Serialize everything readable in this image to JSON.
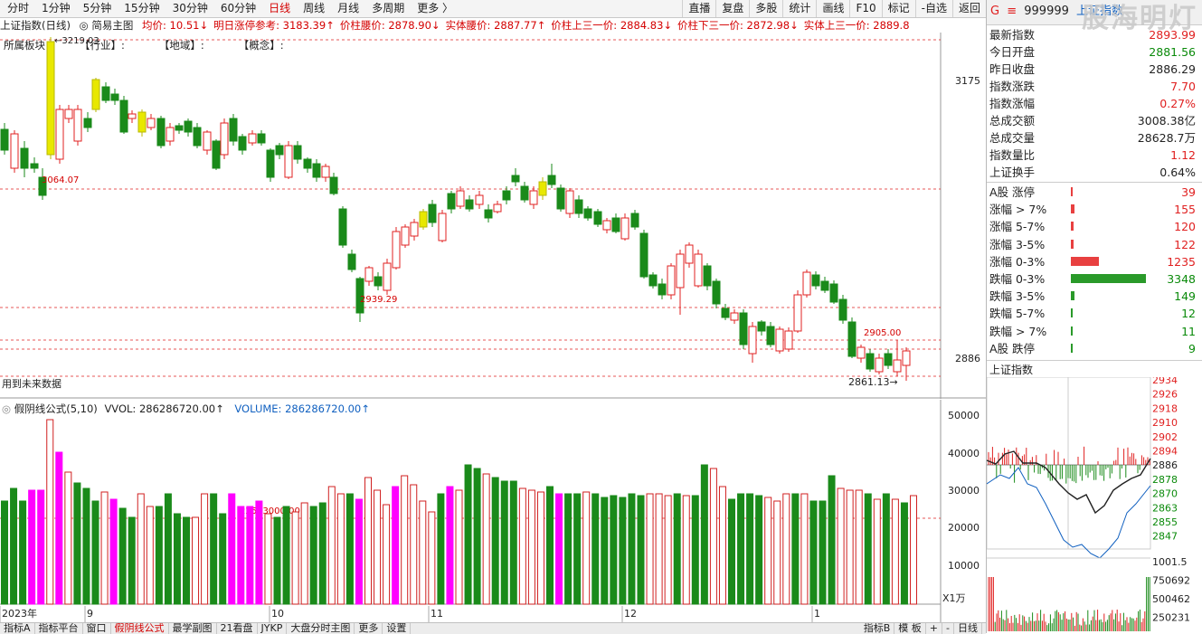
{
  "toolbar": {
    "periods": [
      "分时",
      "1分钟",
      "5分钟",
      "15分钟",
      "30分钟",
      "60分钟",
      "日线",
      "周线",
      "月线",
      "多周期",
      "更多 〉"
    ],
    "active_period": "日线",
    "buttons": [
      "直播",
      "复盘",
      "多股",
      "统计",
      "画线",
      "F10",
      "标记",
      "-自选",
      "返回"
    ]
  },
  "main_header": {
    "title": "上证指数(日线)",
    "template": "◎ 简易主图",
    "items": [
      {
        "text": "均价: 10.51",
        "arrow": "↓",
        "color": "red"
      },
      {
        "text": "明日涨停参考: 3183.39",
        "arrow": "↑",
        "color": "red"
      },
      {
        "text": "价柱腰价: 2878.90",
        "arrow": "↓",
        "color": "red"
      },
      {
        "text": "实体腰价: 2887.77",
        "arrow": "↑",
        "color": "red"
      },
      {
        "text": "价柱上三一价: 2884.83",
        "arrow": "↓",
        "color": "red"
      },
      {
        "text": "价柱下三一价: 2872.98",
        "arrow": "↓",
        "color": "red"
      },
      {
        "text": "实体上三一价: 2889.8",
        "arrow": "",
        "color": "red"
      }
    ]
  },
  "board_row": [
    "所属板块",
    "【行业】:",
    "【地域】:",
    "【概念】:"
  ],
  "price_axis": {
    "top_label": "3175",
    "bottom_label": "2886"
  },
  "annotations": {
    "high": "3219.03",
    "level1": "3064.07",
    "level2": "2939.29",
    "level3": "2905.00",
    "low": "2861.13",
    "future_note": "用到未来数据",
    "vol_level": "22573000.00"
  },
  "volume_header": {
    "name": "假阴线公式(5,10)",
    "vvol": "VVOL: 286286720.00↑",
    "volume": "VOLUME: 286286720.00↑"
  },
  "volume_axis": [
    "50000",
    "40000",
    "30000",
    "20000",
    "10000"
  ],
  "volume_unit": "X1万",
  "date_axis": [
    "2023年",
    "9",
    "10",
    "11",
    "12",
    "1"
  ],
  "bottom_tabs": [
    "指标A",
    "指标平台",
    "窗口",
    "假阴线公式",
    "最学副图",
    "21看盘",
    "JYKP",
    "大盘分时主图",
    "更多",
    "设置"
  ],
  "active_tab": "假阴线公式",
  "bottom_right": [
    "指标B",
    "模 板",
    "+",
    "-",
    "日线"
  ],
  "panel": {
    "code": "999999",
    "name": "上证指数",
    "watermark": "股海明灯",
    "stats": [
      {
        "label": "最新指数",
        "value": "2893.99",
        "color": "red"
      },
      {
        "label": "今日开盘",
        "value": "2881.56",
        "color": "grn"
      },
      {
        "label": "昨日收盘",
        "value": "2886.29",
        "color": "blk"
      },
      {
        "label": "指数涨跌",
        "value": "7.70",
        "color": "red"
      },
      {
        "label": "指数涨幅",
        "value": "0.27%",
        "color": "red"
      },
      {
        "label": "总成交额",
        "value": "3008.38亿",
        "color": "blk"
      },
      {
        "label": "总成交量",
        "value": "28628.7万",
        "color": "blk"
      },
      {
        "label": "指数量比",
        "value": "1.12",
        "color": "red"
      },
      {
        "label": "上证换手",
        "value": "0.64%",
        "color": "blk"
      }
    ],
    "breadth": [
      {
        "label": "A股 涨停",
        "value": "39",
        "color": "red",
        "frac": 0.012
      },
      {
        "label": "涨幅 > 7%",
        "value": "155",
        "color": "red",
        "frac": 0.046
      },
      {
        "label": "涨幅 5-7%",
        "value": "120",
        "color": "red",
        "frac": 0.036
      },
      {
        "label": "涨幅 3-5%",
        "value": "122",
        "color": "red",
        "frac": 0.036
      },
      {
        "label": "涨幅 0-3%",
        "value": "1235",
        "color": "red",
        "frac": 0.369
      },
      {
        "label": "跌幅 0-3%",
        "value": "3348",
        "color": "grn",
        "frac": 1.0
      },
      {
        "label": "跌幅 3-5%",
        "value": "149",
        "color": "grn",
        "frac": 0.045
      },
      {
        "label": "跌幅 5-7%",
        "value": "12",
        "color": "grn",
        "frac": 0.004
      },
      {
        "label": "跌幅 > 7%",
        "value": "11",
        "color": "grn",
        "frac": 0.003
      },
      {
        "label": "A股 跌停",
        "value": "9",
        "color": "grn",
        "frac": 0.003
      }
    ],
    "mini_title": "上证指数",
    "mini_axis": [
      "2934",
      "2926",
      "2918",
      "2910",
      "2902",
      "2894",
      "2886",
      "2878",
      "2870",
      "2863",
      "2855",
      "2847"
    ],
    "mini_vol_axis": [
      "1001.5",
      "750692",
      "500462",
      "250231"
    ]
  },
  "colors": {
    "up": "#e02020",
    "down": "#1a8a1a",
    "volume_up": "#d02020",
    "highlight_vol": "#ff00ff",
    "highlight_candle": "#e8e800",
    "dashed": "#e02020",
    "blue_line": "#1060c0"
  }
}
